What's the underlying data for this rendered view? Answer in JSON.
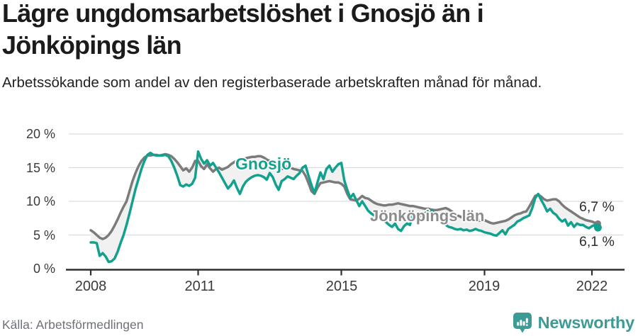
{
  "header": {
    "title": "Lägre ungdomsarbetslöshet i Gnosjö än i Jönköpings län",
    "subtitle": "Arbetssökande som andel av den registerbaserade arbetskraften månad för månad."
  },
  "footer": {
    "source": "Källa: Arbetsförmedlingen",
    "brand": "Newsworthy"
  },
  "colors": {
    "gnosjo": "#13a18f",
    "county": "#7b7b7b",
    "band": "#f1f1f1",
    "grid": "#dcdcdc",
    "axis": "#2f2f2f",
    "brand": "#3e9a94"
  },
  "chart_data": {
    "type": "line",
    "title": "Lägre ungdomsarbetslöshet i Gnosjö än i Jönköpings län",
    "xlabel": "",
    "ylabel": "Arbetssökande som andel av den registerbaserade arbetskraften, %",
    "x_unit": "monthly",
    "x_start_year": 2008.0,
    "x_step_years": 0.0833333,
    "ylim": [
      0,
      20
    ],
    "grid": true,
    "legend_position": "inline-labels",
    "y_ticks": [
      {
        "label": "0 %",
        "value": 0
      },
      {
        "label": "5 %",
        "value": 5
      },
      {
        "label": "10 %",
        "value": 10
      },
      {
        "label": "15 %",
        "value": 15
      },
      {
        "label": "20 %",
        "value": 20
      }
    ],
    "x_ticks": [
      {
        "label": "2008",
        "value": 2008
      },
      {
        "label": "2011",
        "value": 2011
      },
      {
        "label": "2015",
        "value": 2015
      },
      {
        "label": "2019",
        "value": 2019
      },
      {
        "label": "2022",
        "value": 2022
      }
    ],
    "series": [
      {
        "name": "Gnosjö",
        "color_key": "gnosjo",
        "end_label": "6,1 %",
        "end_value": 6.1,
        "values": [
          3.9,
          3.9,
          3.8,
          1.9,
          2.3,
          1.8,
          1.0,
          1.1,
          1.5,
          2.5,
          3.8,
          5.0,
          6.5,
          8.2,
          10.0,
          11.8,
          13.3,
          14.8,
          16.0,
          16.9,
          17.2,
          16.9,
          16.8,
          16.8,
          16.8,
          16.9,
          16.7,
          16.0,
          15.0,
          13.8,
          12.4,
          12.2,
          12.5,
          12.3,
          12.6,
          13.5,
          17.4,
          16.3,
          15.6,
          16.1,
          15.3,
          15.7,
          15.0,
          14.3,
          13.5,
          12.7,
          11.9,
          12.4,
          13.1,
          12.0,
          11.1,
          12.2,
          12.9,
          13.3,
          13.6,
          13.8,
          13.9,
          13.8,
          13.6,
          13.2,
          14.2,
          13.6,
          12.5,
          11.7,
          13.0,
          13.3,
          13.7,
          13.5,
          13.3,
          13.8,
          14.2,
          15.0,
          15.3,
          13.8,
          12.4,
          11.2,
          12.8,
          14.3,
          13.3,
          14.8,
          15.3,
          14.4,
          15.0,
          15.5,
          15.7,
          13.1,
          11.7,
          10.5,
          11.1,
          10.2,
          9.3,
          10.0,
          9.3,
          8.6,
          8.2,
          7.9,
          7.8,
          7.5,
          7.2,
          6.9,
          6.5,
          6.2,
          6.7,
          5.9,
          5.6,
          6.3,
          6.7,
          6.5,
          8.2,
          7.9,
          7.7,
          7.9,
          8.2,
          8.5,
          8.7,
          8.4,
          8.0,
          7.5,
          7.0,
          6.5,
          6.2,
          6.1,
          5.9,
          5.8,
          5.9,
          5.7,
          5.8,
          5.6,
          5.7,
          5.9,
          5.7,
          5.6,
          5.4,
          5.3,
          5.2,
          5.0,
          4.9,
          5.3,
          5.7,
          5.1,
          5.9,
          6.2,
          6.5,
          7.0,
          7.2,
          7.5,
          7.7,
          7.9,
          9.0,
          10.5,
          11.1,
          10.2,
          9.4,
          8.5,
          8.9,
          8.3,
          8.0,
          7.4,
          7.0,
          7.3,
          6.4,
          6.9,
          6.2,
          6.7,
          6.5,
          6.5,
          6.2,
          6.0,
          6.3,
          6.5,
          6.1
        ]
      },
      {
        "name": "Jönköpings län",
        "color_key": "county",
        "end_label": "6,7 %",
        "end_value": 6.7,
        "values": [
          5.7,
          5.4,
          5.0,
          4.6,
          4.4,
          4.6,
          5.0,
          5.6,
          6.4,
          7.3,
          8.3,
          9.2,
          10.0,
          11.5,
          13.0,
          14.2,
          15.2,
          16.0,
          16.5,
          16.8,
          16.8,
          16.9,
          16.9,
          16.8,
          16.9,
          17.0,
          16.9,
          16.7,
          16.3,
          15.8,
          15.2,
          14.6,
          14.9,
          14.4,
          15.0,
          16.0,
          16.0,
          15.2,
          14.8,
          15.5,
          14.9,
          14.4,
          14.8,
          15.0,
          14.7,
          14.9,
          15.1,
          15.5,
          15.8,
          16.0,
          16.2,
          16.3,
          16.4,
          16.5,
          16.6,
          16.6,
          16.7,
          16.7,
          16.5,
          16.2,
          16.0,
          15.7,
          15.4,
          15.0,
          14.8,
          14.9,
          15.2,
          15.0,
          14.8,
          14.7,
          14.6,
          14.5,
          13.8,
          12.7,
          11.5,
          11.1,
          12.0,
          12.7,
          12.8,
          12.9,
          13.0,
          12.9,
          12.8,
          12.8,
          12.6,
          12.2,
          11.1,
          10.3,
          10.2,
          10.1,
          10.4,
          10.8,
          10.5,
          10.4,
          10.1,
          9.8,
          9.6,
          9.5,
          9.4,
          9.4,
          9.5,
          9.5,
          9.6,
          9.7,
          9.6,
          9.5,
          9.4,
          9.3,
          9.3,
          9.2,
          9.1,
          9.0,
          8.9,
          8.9,
          8.8,
          8.7,
          8.7,
          8.8,
          8.9,
          9.0,
          8.8,
          8.5,
          8.2,
          7.9,
          7.7,
          7.5,
          7.4,
          7.3,
          7.2,
          7.2,
          7.1,
          7.2,
          7.2,
          7.0,
          6.8,
          6.7,
          6.8,
          6.9,
          7.0,
          7.1,
          7.3,
          7.6,
          7.9,
          8.1,
          8.2,
          8.4,
          8.5,
          9.2,
          10.0,
          10.8,
          11.0,
          10.7,
          10.3,
          10.1,
          10.2,
          10.3,
          10.3,
          10.0,
          9.5,
          9.1,
          8.8,
          8.5,
          8.2,
          7.9,
          7.6,
          7.4,
          7.2,
          7.1,
          7.0,
          6.8,
          6.7
        ]
      }
    ]
  }
}
